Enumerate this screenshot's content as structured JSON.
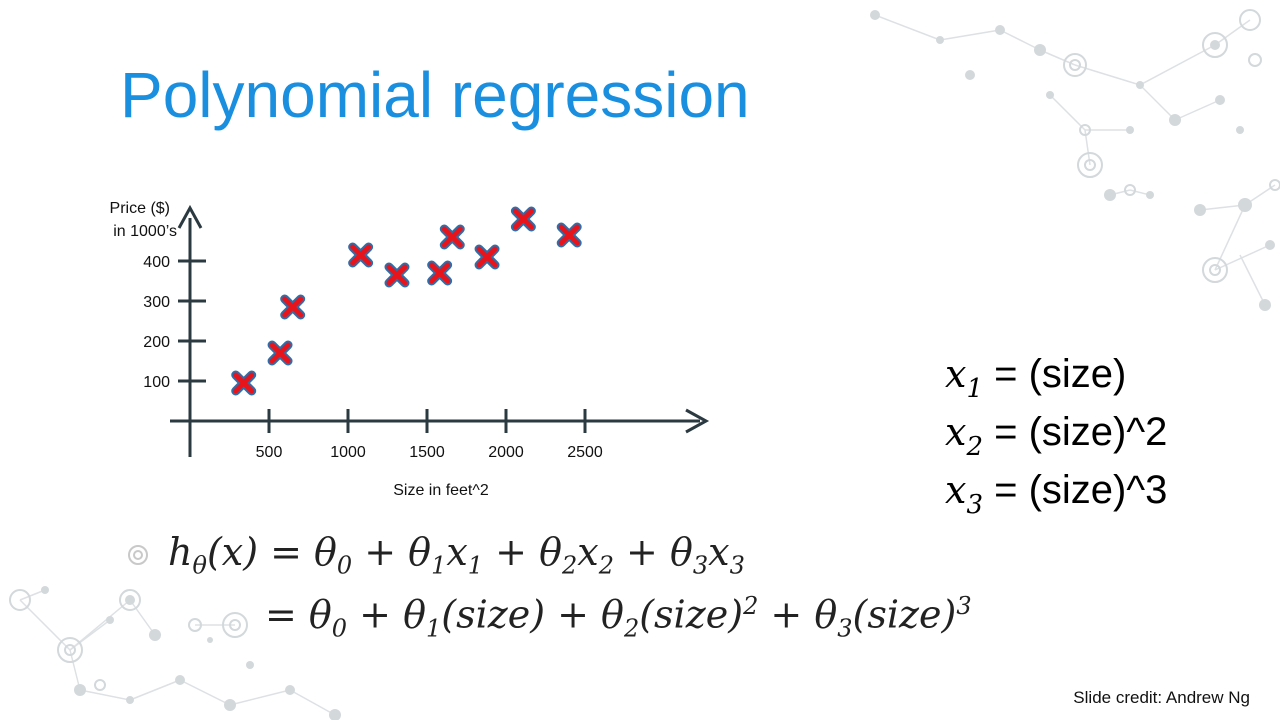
{
  "slide": {
    "title": "Polynomial regression",
    "credit": "Slide credit: Andrew Ng"
  },
  "features": [
    {
      "var": "x",
      "sub": "1",
      "rhs": " = (size)"
    },
    {
      "var": "x",
      "sub": "2",
      "rhs": " = (size)^2"
    },
    {
      "var": "x",
      "sub": "3",
      "rhs": " = (size)^3"
    }
  ],
  "equation": {
    "line1": "h_θ(x) = θ_0 + θ_1x_1 + θ_2x_2 + θ_3x_3",
    "line2": "= θ_0 + θ_1(size) + θ_2(size)^2 + θ_3(size)^3"
  },
  "colors": {
    "title": "#1a8fe0",
    "axis": "#2b3a40",
    "marker_fill": "#e8141c",
    "marker_outline": "#2f6ea8",
    "decoration": "#cfd3d6"
  },
  "chart_data": {
    "type": "scatter",
    "xlabel": "Size in feet^2",
    "ylabel_line1": "Price ($)",
    "ylabel_line2": "in 1000’s",
    "xticks": [
      500,
      1000,
      1500,
      2000,
      2500
    ],
    "yticks": [
      100,
      200,
      300,
      400
    ],
    "xlim": [
      0,
      3250
    ],
    "ylim": [
      0,
      510
    ],
    "marker": "x",
    "points": [
      {
        "x": 340,
        "y": 95
      },
      {
        "x": 570,
        "y": 170
      },
      {
        "x": 650,
        "y": 285
      },
      {
        "x": 1080,
        "y": 415
      },
      {
        "x": 1310,
        "y": 365
      },
      {
        "x": 1580,
        "y": 370
      },
      {
        "x": 1660,
        "y": 460
      },
      {
        "x": 1880,
        "y": 410
      },
      {
        "x": 2110,
        "y": 505
      },
      {
        "x": 2400,
        "y": 465
      }
    ]
  }
}
